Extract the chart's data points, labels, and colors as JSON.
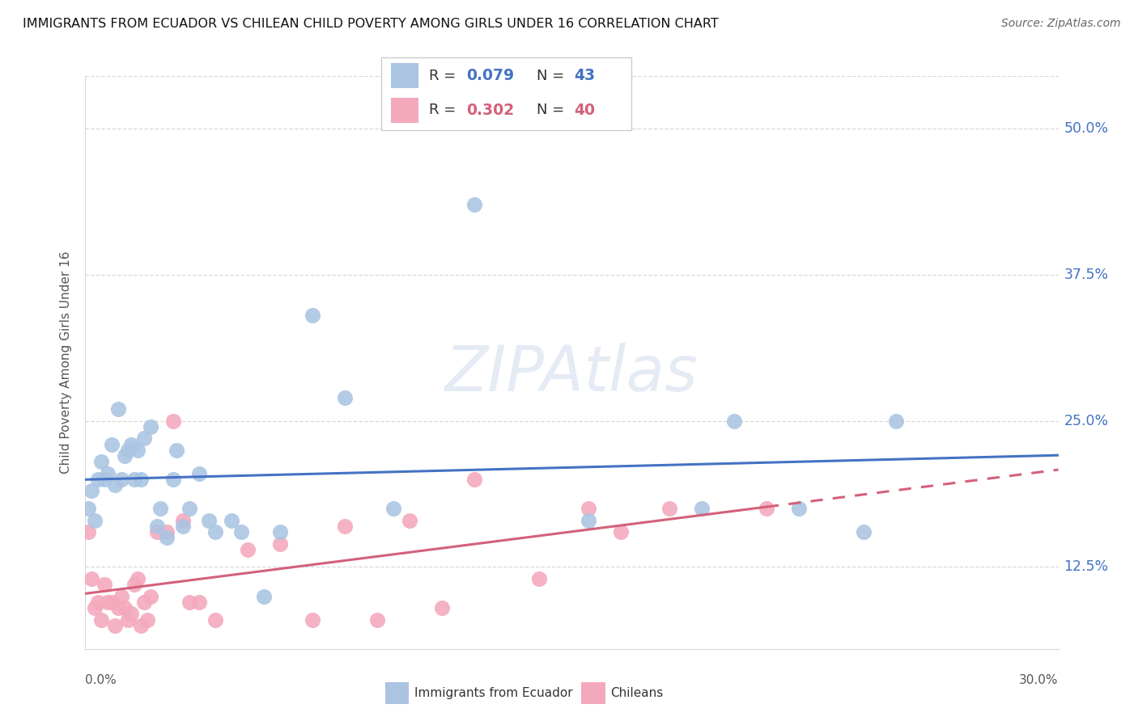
{
  "title": "IMMIGRANTS FROM ECUADOR VS CHILEAN CHILD POVERTY AMONG GIRLS UNDER 16 CORRELATION CHART",
  "source": "Source: ZipAtlas.com",
  "ylabel": "Child Poverty Among Girls Under 16",
  "ytick_vals": [
    0.125,
    0.25,
    0.375,
    0.5
  ],
  "ytick_labels": [
    "12.5%",
    "25.0%",
    "37.5%",
    "50.0%"
  ],
  "xlim": [
    0.0,
    0.3
  ],
  "ylim": [
    0.055,
    0.545
  ],
  "watermark": "ZIPAtlas",
  "blue_scatter": "#aac4e2",
  "pink_scatter": "#f4a8bc",
  "line_blue": "#4472c4",
  "line_pink": "#d4607a",
  "grid_color": "#d8d8d8",
  "ecuador_x": [
    0.001,
    0.002,
    0.003,
    0.004,
    0.005,
    0.006,
    0.007,
    0.008,
    0.009,
    0.01,
    0.011,
    0.012,
    0.013,
    0.014,
    0.015,
    0.016,
    0.017,
    0.018,
    0.02,
    0.022,
    0.023,
    0.025,
    0.027,
    0.028,
    0.03,
    0.032,
    0.035,
    0.038,
    0.04,
    0.045,
    0.048,
    0.055,
    0.06,
    0.07,
    0.08,
    0.095,
    0.12,
    0.155,
    0.19,
    0.2,
    0.22,
    0.24,
    0.25
  ],
  "ecuador_y": [
    0.175,
    0.19,
    0.165,
    0.2,
    0.215,
    0.2,
    0.205,
    0.23,
    0.195,
    0.26,
    0.2,
    0.22,
    0.225,
    0.23,
    0.2,
    0.225,
    0.2,
    0.235,
    0.245,
    0.16,
    0.175,
    0.15,
    0.2,
    0.225,
    0.16,
    0.175,
    0.205,
    0.165,
    0.155,
    0.165,
    0.155,
    0.1,
    0.155,
    0.34,
    0.27,
    0.175,
    0.435,
    0.165,
    0.175,
    0.25,
    0.175,
    0.155,
    0.25
  ],
  "chilean_x": [
    0.001,
    0.002,
    0.003,
    0.004,
    0.005,
    0.006,
    0.007,
    0.008,
    0.009,
    0.01,
    0.011,
    0.012,
    0.013,
    0.014,
    0.015,
    0.016,
    0.017,
    0.018,
    0.019,
    0.02,
    0.022,
    0.025,
    0.027,
    0.03,
    0.032,
    0.035,
    0.04,
    0.05,
    0.06,
    0.07,
    0.08,
    0.09,
    0.1,
    0.11,
    0.12,
    0.14,
    0.155,
    0.165,
    0.18,
    0.21
  ],
  "chilean_y": [
    0.155,
    0.115,
    0.09,
    0.095,
    0.08,
    0.11,
    0.095,
    0.095,
    0.075,
    0.09,
    0.1,
    0.09,
    0.08,
    0.085,
    0.11,
    0.115,
    0.075,
    0.095,
    0.08,
    0.1,
    0.155,
    0.155,
    0.25,
    0.165,
    0.095,
    0.095,
    0.08,
    0.14,
    0.145,
    0.08,
    0.16,
    0.08,
    0.165,
    0.09,
    0.2,
    0.115,
    0.175,
    0.155,
    0.175,
    0.175
  ]
}
